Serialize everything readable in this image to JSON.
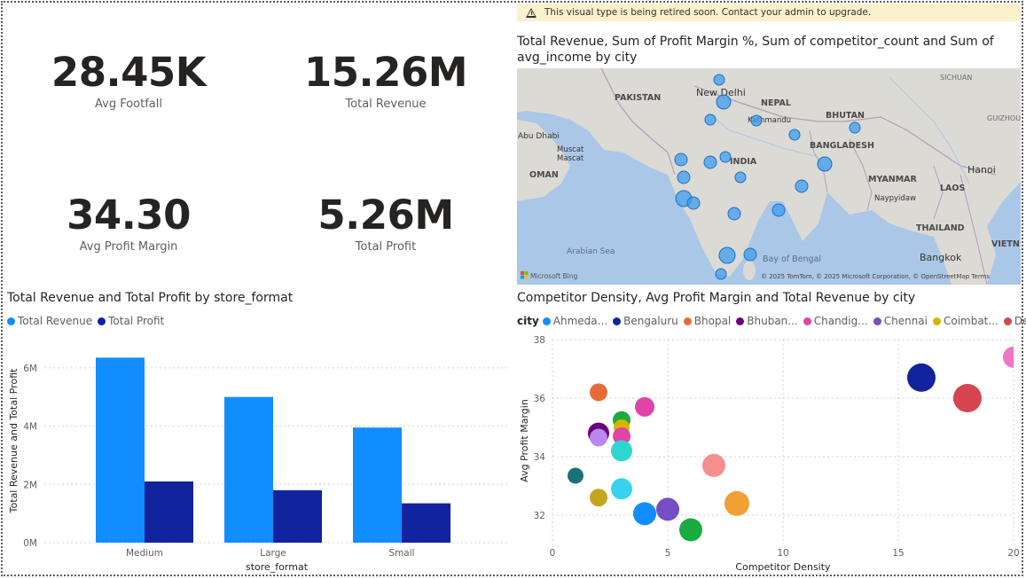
{
  "kpis": [
    {
      "value": "28.45K",
      "label": "Avg Footfall"
    },
    {
      "value": "15.26M",
      "label": "Total Revenue"
    },
    {
      "value": "34.30",
      "label": "Avg Profit Margin"
    },
    {
      "value": "5.26M",
      "label": "Total Profit"
    }
  ],
  "banner": {
    "text": "This visual type is being retired soon. Contact your admin to upgrade.",
    "icon": "warning-icon"
  },
  "map": {
    "title": "Total Revenue, Sum of Profit Margin %, Sum of competitor_count and Sum of avg_income by city",
    "labels": {
      "sichuan": "SICHUAN",
      "pakistan": "PAKISTAN",
      "new_delhi": "New Delhi",
      "nepal": "NEPAL",
      "kathmandu": "Kathmandu",
      "bhutan": "BHUTAN",
      "guizhou": "GUIZHOU",
      "abu_dhabi": "Abu Dhabi",
      "muscat1": "Muscat",
      "muscat2": "Mascat",
      "oman": "OMAN",
      "india": "INDIA",
      "bangladesh": "BANGLADESH",
      "hanoi": "Hanoi",
      "myanmar": "MYANMAR",
      "laos": "LAOS",
      "naypyidaw": "Naypyidaw",
      "arabian_sea": "Arabian Sea",
      "bay_of_bengal": "Bay of Bengal",
      "thailand": "THAILAND",
      "bangkok": "Bangkok",
      "vietnam": "VIETN",
      "bing": "Microsoft Bing",
      "copyright": "© 2025 TomTom, © 2025 Microsoft Corporation, © OpenStreetMap Terms"
    },
    "colors": {
      "water": "#aac7e8",
      "land": "#dcdad4",
      "bubble": "#3d9cf0",
      "bubble_stroke": "#1f6fc2"
    }
  },
  "bar_chart": {
    "title": "Total Revenue and Total Profit by store_format",
    "legend": [
      {
        "name": "Total Revenue",
        "color": "#118dff"
      },
      {
        "name": "Total Profit",
        "color": "#12239e"
      }
    ],
    "y_ticks": [
      "6M",
      "4M",
      "2M",
      "0M"
    ],
    "xlabel": "store_format",
    "ylabel": "Total Revenue and Total Profit"
  },
  "scatter_chart": {
    "title": "Competitor Density, Avg Profit Margin and Total Revenue by city",
    "legend_label": "city",
    "legend": [
      {
        "name": "Ahmeda...",
        "color": "#118dff"
      },
      {
        "name": "Bengaluru",
        "color": "#12239e"
      },
      {
        "name": "Bhopal",
        "color": "#e66c37"
      },
      {
        "name": "Bhuban...",
        "color": "#6b007b"
      },
      {
        "name": "Chandig...",
        "color": "#e044a7"
      },
      {
        "name": "Chennai",
        "color": "#744ec2"
      },
      {
        "name": "Coimbat...",
        "color": "#d9b300"
      },
      {
        "name": "Delhi",
        "color": "#d64550"
      }
    ],
    "legend_more": "▶",
    "y_ticks": [
      "38",
      "36",
      "34",
      "32"
    ],
    "x_ticks": [
      "0",
      "5",
      "10",
      "15",
      "20"
    ],
    "xlabel": "Competitor Density",
    "ylabel": "Avg Profit Margin"
  },
  "chart_data": [
    {
      "type": "bar",
      "title": "Total Revenue and Total Profit by store_format",
      "categories": [
        "Medium",
        "Large",
        "Small"
      ],
      "series": [
        {
          "name": "Total Revenue",
          "values": [
            6.35,
            5.0,
            3.95
          ]
        },
        {
          "name": "Total Profit",
          "values": [
            2.1,
            1.8,
            1.35
          ]
        }
      ],
      "units": "M",
      "xlabel": "store_format",
      "ylabel": "Total Revenue and Total Profit",
      "ylim": [
        0,
        7
      ],
      "grid": true,
      "legend": "top-left"
    },
    {
      "type": "scatter",
      "title": "Competitor Density, Avg Profit Margin and Total Revenue by city",
      "xlabel": "Competitor Density",
      "ylabel": "Avg Profit Margin",
      "xlim": [
        0,
        20
      ],
      "ylim": [
        31,
        38
      ],
      "grid": true,
      "legend": "top",
      "points": [
        {
          "x": 20,
          "y": 37.4,
          "size": 12,
          "color": "#f075c8"
        },
        {
          "x": 16,
          "y": 36.7,
          "size": 16,
          "color": "#12239e"
        },
        {
          "x": 18,
          "y": 36.0,
          "size": 16,
          "color": "#d64550"
        },
        {
          "x": 2,
          "y": 36.2,
          "size": 10,
          "color": "#e66c37"
        },
        {
          "x": 4,
          "y": 35.7,
          "size": 11,
          "color": "#e044a7"
        },
        {
          "x": 3,
          "y": 35.25,
          "size": 10,
          "color": "#1aab40"
        },
        {
          "x": 3,
          "y": 35.0,
          "size": 9,
          "color": "#d9b300"
        },
        {
          "x": 2,
          "y": 34.8,
          "size": 12,
          "color": "#6b007b"
        },
        {
          "x": 2,
          "y": 34.65,
          "size": 10,
          "color": "#b887f0"
        },
        {
          "x": 3,
          "y": 34.7,
          "size": 10,
          "color": "#e044a7"
        },
        {
          "x": 3,
          "y": 34.2,
          "size": 12,
          "color": "#2ed6d2"
        },
        {
          "x": 7,
          "y": 33.7,
          "size": 13,
          "color": "#f58f8f"
        },
        {
          "x": 1,
          "y": 33.35,
          "size": 9,
          "color": "#197278"
        },
        {
          "x": 3,
          "y": 32.9,
          "size": 12,
          "color": "#38d2f0"
        },
        {
          "x": 2,
          "y": 32.6,
          "size": 10,
          "color": "#c4a51f"
        },
        {
          "x": 8,
          "y": 32.4,
          "size": 14,
          "color": "#f0a034"
        },
        {
          "x": 4,
          "y": 32.05,
          "size": 13,
          "color": "#118dff"
        },
        {
          "x": 5,
          "y": 32.2,
          "size": 13,
          "color": "#744ec2"
        },
        {
          "x": 6,
          "y": 31.5,
          "size": 13,
          "color": "#1aab40"
        }
      ]
    }
  ]
}
